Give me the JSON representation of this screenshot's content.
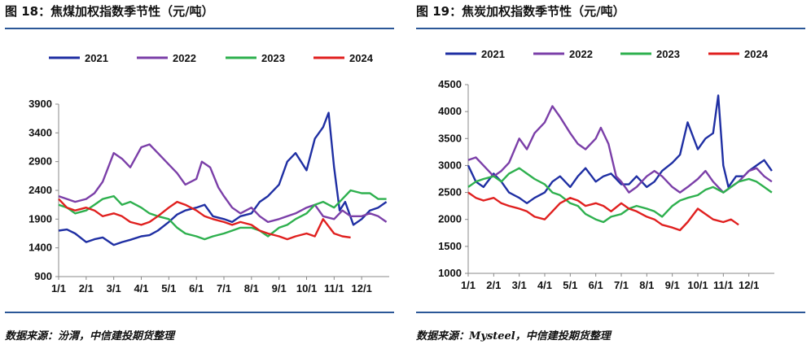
{
  "figures": [
    {
      "title": "图 18：焦煤加权指数季节性（元/吨）",
      "source": "数据来源：汾渭，中信建投期货整理"
    },
    {
      "title": "图 19：焦炭加权指数季节性（元/吨）",
      "source": "数据来源：Mysteel，中信建投期货整理"
    }
  ],
  "colors": {
    "2021": "#1f2fa3",
    "2022": "#7b3fa8",
    "2023": "#2eb04e",
    "2024": "#e0201f",
    "rule": "#2b5797"
  },
  "chart_data": [
    {
      "type": "line",
      "title": "图 18：焦煤加权指数季节性（元/吨）",
      "xlabel": "",
      "ylabel": "",
      "ylim": [
        900,
        3900
      ],
      "yticks": [
        900,
        1400,
        1900,
        2400,
        2900,
        3400,
        3900
      ],
      "xticks": [
        "1/1",
        "2/1",
        "3/1",
        "4/1",
        "5/1",
        "6/1",
        "7/1",
        "8/1",
        "9/1",
        "10/1",
        "11/1",
        "12/1"
      ],
      "xlim": [
        1,
        13
      ],
      "legend": "top",
      "grid": false,
      "series": [
        {
          "name": "2021",
          "x": [
            1,
            1.3,
            1.6,
            2,
            2.3,
            2.6,
            3,
            3.3,
            3.6,
            4,
            4.3,
            4.6,
            5,
            5.3,
            5.6,
            6,
            6.3,
            6.6,
            7,
            7.3,
            7.6,
            8,
            8.3,
            8.6,
            9,
            9.3,
            9.6,
            10,
            10.3,
            10.6,
            10.8,
            11,
            11.2,
            11.4,
            11.7,
            12,
            12.3,
            12.6,
            12.9
          ],
          "y": [
            1700,
            1720,
            1650,
            1500,
            1550,
            1580,
            1450,
            1500,
            1540,
            1600,
            1620,
            1700,
            1850,
            1980,
            2050,
            2100,
            2150,
            1950,
            1900,
            1850,
            1950,
            2000,
            2200,
            2300,
            2500,
            2900,
            3050,
            2750,
            3300,
            3500,
            3750,
            2800,
            2050,
            2200,
            1800,
            1900,
            2050,
            2100,
            2200
          ]
        },
        {
          "name": "2022",
          "x": [
            1,
            1.3,
            1.6,
            2,
            2.3,
            2.6,
            3,
            3.3,
            3.6,
            4,
            4.3,
            4.6,
            5,
            5.3,
            5.6,
            6,
            6.2,
            6.5,
            6.8,
            7,
            7.3,
            7.6,
            8,
            8.3,
            8.6,
            9,
            9.3,
            9.6,
            10,
            10.3,
            10.6,
            11,
            11.3,
            11.6,
            12,
            12.3,
            12.6,
            12.9
          ],
          "y": [
            2300,
            2250,
            2200,
            2250,
            2350,
            2550,
            3050,
            2950,
            2800,
            3150,
            3200,
            3050,
            2850,
            2700,
            2500,
            2600,
            2900,
            2800,
            2450,
            2300,
            2100,
            2000,
            2100,
            1950,
            1850,
            1900,
            1950,
            2000,
            2100,
            2150,
            1950,
            1900,
            2050,
            1950,
            1950,
            2000,
            1950,
            1850
          ]
        },
        {
          "name": "2023",
          "x": [
            1,
            1.3,
            1.6,
            2,
            2.3,
            2.6,
            3,
            3.3,
            3.6,
            4,
            4.3,
            4.6,
            5,
            5.3,
            5.6,
            6,
            6.3,
            6.6,
            7,
            7.3,
            7.6,
            8,
            8.3,
            8.6,
            9,
            9.3,
            9.6,
            10,
            10.3,
            10.6,
            11,
            11.3,
            11.6,
            12,
            12.3,
            12.6,
            12.9
          ],
          "y": [
            2150,
            2100,
            2000,
            2050,
            2150,
            2250,
            2300,
            2150,
            2200,
            2100,
            2000,
            1950,
            1900,
            1750,
            1650,
            1600,
            1550,
            1600,
            1650,
            1700,
            1750,
            1750,
            1700,
            1600,
            1750,
            1800,
            1900,
            2000,
            2150,
            2200,
            2100,
            2250,
            2400,
            2350,
            2350,
            2250,
            2250
          ]
        },
        {
          "name": "2024",
          "x": [
            1,
            1.3,
            1.6,
            2,
            2.3,
            2.6,
            3,
            3.3,
            3.6,
            4,
            4.3,
            4.6,
            5,
            5.3,
            5.6,
            6,
            6.3,
            6.6,
            7,
            7.3,
            7.6,
            8,
            8.3,
            8.6,
            9,
            9.3,
            9.6,
            10,
            10.3,
            10.6,
            11,
            11.3,
            11.6
          ],
          "y": [
            2250,
            2100,
            2050,
            2100,
            2050,
            1950,
            2000,
            1950,
            1850,
            1800,
            1850,
            1950,
            2100,
            2200,
            2150,
            2050,
            1950,
            1900,
            1850,
            1800,
            1850,
            1800,
            1700,
            1650,
            1600,
            1550,
            1600,
            1650,
            1600,
            1900,
            1650,
            1600,
            1580
          ]
        }
      ]
    },
    {
      "type": "line",
      "title": "图 19：焦炭加权指数季节性（元/吨）",
      "xlabel": "",
      "ylabel": "",
      "ylim": [
        1000,
        4500
      ],
      "yticks": [
        1000,
        1500,
        2000,
        2500,
        3000,
        3500,
        4000,
        4500
      ],
      "xticks": [
        "1/1",
        "2/1",
        "3/1",
        "4/1",
        "5/1",
        "6/1",
        "7/1",
        "8/1",
        "9/1",
        "10/1",
        "11/1",
        "12/1"
      ],
      "xlim": [
        1,
        13
      ],
      "legend": "top",
      "grid": false,
      "series": [
        {
          "name": "2021",
          "x": [
            1,
            1.3,
            1.6,
            2,
            2.3,
            2.6,
            3,
            3.3,
            3.6,
            4,
            4.3,
            4.6,
            5,
            5.3,
            5.6,
            6,
            6.3,
            6.6,
            7,
            7.3,
            7.6,
            8,
            8.3,
            8.6,
            9,
            9.3,
            9.6,
            10,
            10.3,
            10.6,
            10.8,
            11,
            11.2,
            11.5,
            11.8,
            12,
            12.3,
            12.6,
            12.9
          ],
          "y": [
            3000,
            2700,
            2600,
            2850,
            2700,
            2500,
            2400,
            2300,
            2400,
            2500,
            2700,
            2800,
            2600,
            2800,
            2950,
            2700,
            2800,
            2850,
            2650,
            2650,
            2800,
            2600,
            2700,
            2900,
            3050,
            3200,
            3800,
            3300,
            3500,
            3600,
            4300,
            3000,
            2600,
            2800,
            2800,
            2900,
            3000,
            3100,
            2900
          ]
        },
        {
          "name": "2022",
          "x": [
            1,
            1.3,
            1.6,
            2,
            2.3,
            2.6,
            3,
            3.3,
            3.6,
            4,
            4.3,
            4.6,
            5,
            5.3,
            5.6,
            6,
            6.2,
            6.5,
            6.8,
            7,
            7.3,
            7.6,
            8,
            8.3,
            8.6,
            9,
            9.3,
            9.6,
            10,
            10.3,
            10.6,
            11,
            11.3,
            11.6,
            12,
            12.3,
            12.6,
            12.9
          ],
          "y": [
            3100,
            3150,
            3000,
            2800,
            2900,
            3050,
            3500,
            3300,
            3600,
            3800,
            4100,
            3900,
            3600,
            3400,
            3300,
            3500,
            3700,
            3400,
            2800,
            2700,
            2500,
            2600,
            2800,
            2900,
            2800,
            2600,
            2500,
            2600,
            2750,
            2900,
            2700,
            2500,
            2600,
            2700,
            2900,
            2950,
            2800,
            2700
          ]
        },
        {
          "name": "2023",
          "x": [
            1,
            1.3,
            1.6,
            2,
            2.3,
            2.6,
            3,
            3.3,
            3.6,
            4,
            4.3,
            4.6,
            5,
            5.3,
            5.6,
            6,
            6.3,
            6.6,
            7,
            7.3,
            7.6,
            8,
            8.3,
            8.6,
            9,
            9.3,
            9.6,
            10,
            10.3,
            10.6,
            11,
            11.3,
            11.6,
            12,
            12.3,
            12.6,
            12.9
          ],
          "y": [
            2600,
            2700,
            2750,
            2800,
            2700,
            2850,
            2950,
            2850,
            2750,
            2650,
            2500,
            2450,
            2300,
            2250,
            2100,
            2000,
            1950,
            2050,
            2100,
            2200,
            2250,
            2200,
            2150,
            2050,
            2250,
            2350,
            2400,
            2450,
            2550,
            2600,
            2500,
            2600,
            2700,
            2750,
            2700,
            2600,
            2500
          ]
        },
        {
          "name": "2024",
          "x": [
            1,
            1.3,
            1.6,
            2,
            2.3,
            2.6,
            3,
            3.3,
            3.6,
            4,
            4.3,
            4.6,
            5,
            5.3,
            5.6,
            6,
            6.3,
            6.6,
            7,
            7.3,
            7.6,
            8,
            8.3,
            8.6,
            9,
            9.3,
            9.6,
            10,
            10.3,
            10.6,
            11,
            11.3,
            11.6
          ],
          "y": [
            2500,
            2400,
            2350,
            2400,
            2300,
            2250,
            2200,
            2150,
            2050,
            2000,
            2150,
            2300,
            2400,
            2350,
            2250,
            2300,
            2250,
            2150,
            2300,
            2200,
            2150,
            2050,
            2000,
            1900,
            1850,
            1800,
            1950,
            2200,
            2100,
            2000,
            1950,
            2000,
            1900
          ]
        }
      ]
    }
  ]
}
